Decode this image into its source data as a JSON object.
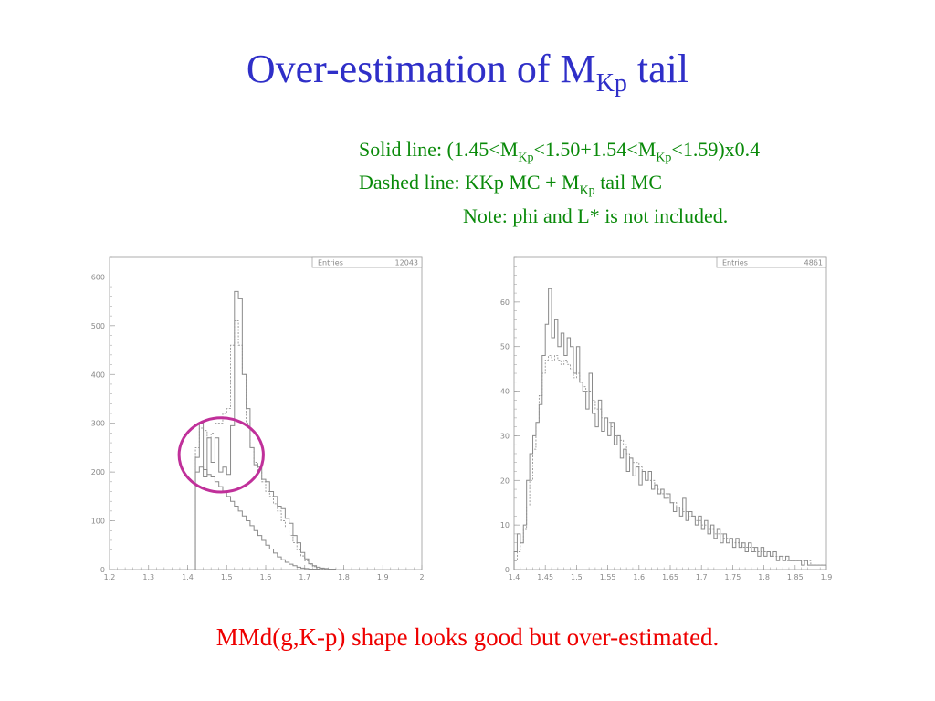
{
  "slide": {
    "title_main": "Over-estimation of M",
    "title_sub": "Kp",
    "title_tail": " tail",
    "line1": {
      "a": "Solid line: (1.45<M",
      "s1": "Kp",
      "b": "<1.50+1.54<M",
      "s2": "Kp",
      "c": "<1.59)x0.4"
    },
    "line2": {
      "a": "Dashed line: KKp MC + M",
      "s1": "Kp",
      "b": " tail MC"
    },
    "line3": "Note: phi and L* is not included.",
    "conclusion": "MMd(g,K-p) shape looks good but over-estimated."
  },
  "colors": {
    "title": "#2f2fc8",
    "notes": "#0a8a0a",
    "conclusion": "#ee0000",
    "circle": "#c0309a",
    "axis": "#999999",
    "hist": "#8a8a8a"
  },
  "chart_data": [
    {
      "type": "histogram",
      "stats_label": "Entries",
      "stats_value": "12043",
      "xlim": [
        1.2,
        2.0
      ],
      "ylim": [
        0,
        640
      ],
      "x_ticks": [
        "1.2",
        "1.3",
        "1.4",
        "1.5",
        "1.6",
        "1.7",
        "1.8",
        "1.9",
        "2"
      ],
      "x_tick_values": [
        1.2,
        1.3,
        1.4,
        1.5,
        1.6,
        1.7,
        1.8,
        1.9,
        2.0
      ],
      "y_ticks": [
        "0",
        "100",
        "200",
        "300",
        "400",
        "500",
        "600"
      ],
      "y_tick_values": [
        0,
        100,
        200,
        300,
        400,
        500,
        600
      ],
      "bin_start": 1.42,
      "bin_width": 0.01,
      "series": [
        {
          "style": "solid",
          "values": [
            230,
            300,
            190,
            270,
            220,
            270,
            200,
            210,
            195,
            295,
            570,
            555,
            400,
            330,
            250,
            215,
            210,
            185,
            180,
            160,
            150,
            130,
            125,
            105,
            95,
            70,
            55,
            35,
            22,
            12,
            8,
            5,
            3,
            2,
            1,
            1
          ]
        },
        {
          "style": "solid",
          "values": [
            200,
            210,
            205,
            195,
            190,
            180,
            170,
            160,
            150,
            140,
            130,
            120,
            110,
            100,
            90,
            80,
            70,
            60,
            50,
            42,
            34,
            26,
            20,
            15,
            11,
            8,
            5,
            3,
            2,
            1,
            1,
            1,
            0,
            0,
            0,
            0
          ]
        },
        {
          "style": "dashed",
          "values": [
            250,
            290,
            285,
            270,
            280,
            300,
            300,
            320,
            330,
            460,
            510,
            460,
            400,
            300,
            250,
            220,
            200,
            180,
            160,
            150,
            135,
            120,
            100,
            85,
            70,
            55,
            40,
            28,
            18,
            11,
            6,
            3,
            2,
            1,
            1,
            0
          ]
        }
      ],
      "annotation": {
        "type": "circle",
        "x": 1.486,
        "y": 235,
        "rx": 0.108,
        "ry": 76
      }
    },
    {
      "type": "histogram",
      "stats_label": "Entries",
      "stats_value": "4861",
      "xlim": [
        1.4,
        1.9
      ],
      "ylim": [
        0,
        70
      ],
      "x_ticks": [
        "1.4",
        "1.45",
        "1.5",
        "1.55",
        "1.6",
        "1.65",
        "1.7",
        "1.75",
        "1.8",
        "1.85",
        "1.9"
      ],
      "x_tick_values": [
        1.4,
        1.45,
        1.5,
        1.55,
        1.6,
        1.65,
        1.7,
        1.75,
        1.8,
        1.85,
        1.9
      ],
      "y_ticks": [
        "0",
        "10",
        "20",
        "30",
        "40",
        "50",
        "60"
      ],
      "y_tick_values": [
        0,
        10,
        20,
        30,
        40,
        50,
        60
      ],
      "bin_start": 1.4,
      "bin_width": 0.005,
      "series": [
        {
          "style": "solid",
          "values": [
            4,
            8,
            6,
            10,
            20,
            26,
            30,
            33,
            37,
            48,
            55,
            63,
            52,
            56,
            50,
            53,
            48,
            52,
            50,
            44,
            50,
            42,
            40,
            36,
            44,
            35,
            32,
            38,
            31,
            34,
            30,
            33,
            28,
            30,
            25,
            27,
            22,
            25,
            21,
            23,
            19,
            22,
            20,
            22,
            18,
            19,
            17,
            18,
            16,
            17,
            15,
            13,
            14,
            12,
            16,
            11,
            13,
            12,
            10,
            12,
            9,
            11,
            8,
            10,
            7,
            9,
            6,
            8,
            6,
            7,
            5,
            7,
            5,
            6,
            4,
            6,
            4,
            5,
            3,
            5,
            3,
            4,
            3,
            4,
            2,
            3,
            2,
            3,
            2,
            2,
            2,
            2,
            1,
            2,
            1,
            1,
            1,
            1,
            1,
            1
          ]
        },
        {
          "style": "dashed",
          "values": [
            2,
            4,
            6,
            9,
            14,
            20,
            27,
            33,
            39,
            44,
            47,
            48,
            47,
            48,
            47,
            46,
            47,
            46,
            45,
            43,
            44,
            42,
            41,
            40,
            40,
            38,
            36,
            36,
            34,
            34,
            33,
            32,
            30,
            30,
            29,
            28,
            26,
            25,
            24,
            24,
            23,
            22,
            21,
            20,
            20,
            19,
            18,
            17,
            17,
            16,
            15,
            15,
            14,
            14,
            13,
            13,
            12,
            12,
            11,
            11,
            10,
            10,
            9,
            9,
            8,
            8,
            8,
            7,
            7,
            7,
            6,
            6,
            6,
            5,
            5,
            5,
            5,
            4,
            4,
            4,
            4,
            4,
            3,
            3,
            3,
            3,
            3,
            2,
            2,
            2,
            2,
            2,
            2,
            2,
            2,
            1,
            1,
            1,
            1,
            1
          ]
        }
      ]
    }
  ]
}
